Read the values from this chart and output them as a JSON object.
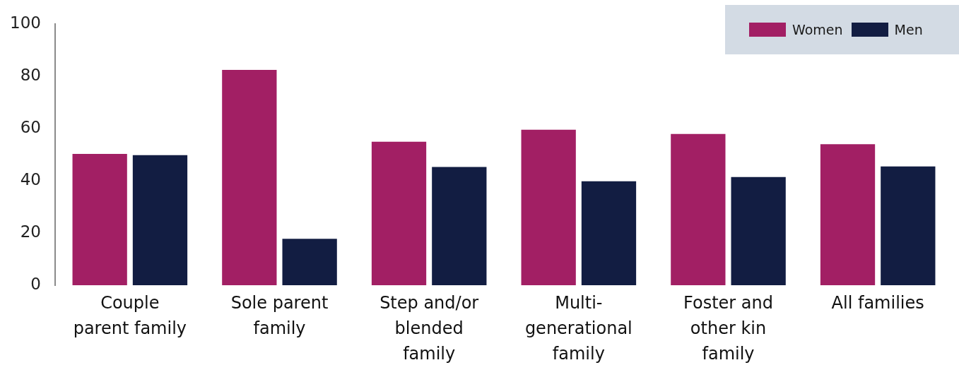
{
  "chart_data": {
    "type": "bar",
    "categories": [
      "Couple\nparent family",
      "Sole parent\nfamily",
      "Step and/or\nblended\nfamily",
      "Multi-\ngenerational\nfamily",
      "Foster and\nother kin\nfamily",
      "All families"
    ],
    "series": [
      {
        "name": "Women",
        "color": "#a21f64",
        "values": [
          50.3,
          82.4,
          54.9,
          59.5,
          57.9,
          54.0
        ]
      },
      {
        "name": "Men",
        "color": "#121d42",
        "values": [
          49.8,
          17.8,
          45.3,
          39.8,
          41.4,
          45.5
        ]
      }
    ],
    "ylim": [
      0,
      100
    ],
    "yticks": [
      0,
      20,
      40,
      60,
      80,
      100
    ],
    "legend": "top right"
  }
}
